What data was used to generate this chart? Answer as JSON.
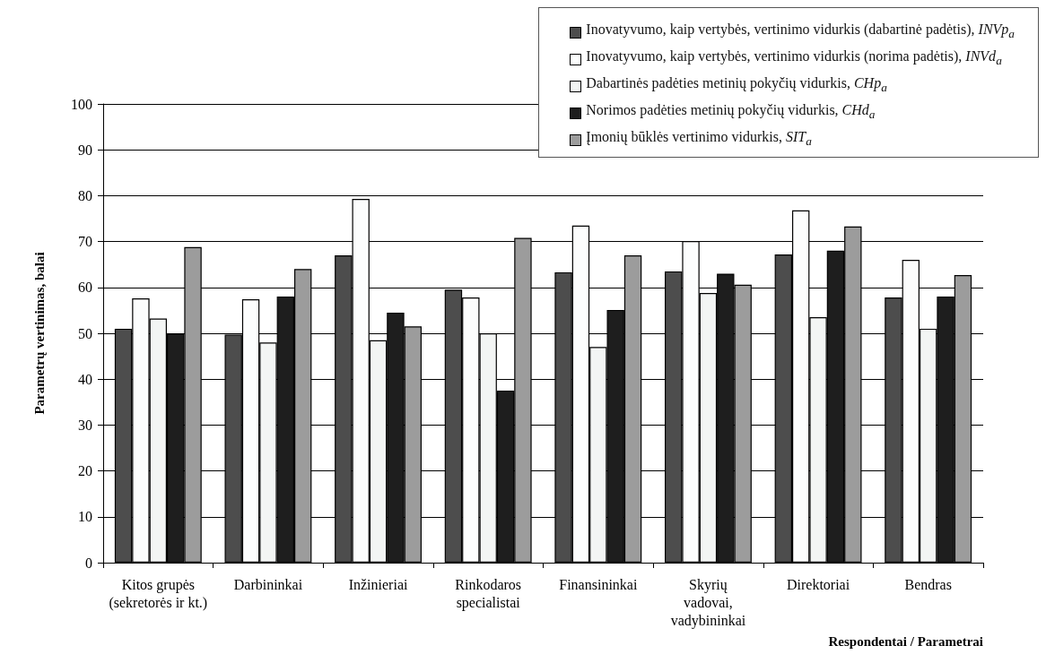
{
  "chart_data": {
    "type": "bar",
    "categories": [
      "Kitos grupės\n(sekretorės ir kt.)",
      "Darbininkai",
      "Inžinieriai",
      "Rinkodaros\nspecialistai",
      "Finansininkai",
      "Skyrių\nvadovai,\nvadybininkai",
      "Direktoriai",
      "Bendras"
    ],
    "series": [
      {
        "name": "Inovatyvumo, kaip vertybės, vertinimo vidurkis (dabartinė padėtis), INVp$_{a}$",
        "color": "#4d4d4d",
        "values": [
          51,
          49.7,
          67,
          59.5,
          63.3,
          63.5,
          67.2,
          57.8
        ]
      },
      {
        "name": "Inovatyvumo, kaip vertybės, vertinimo vidurkis (norima padėtis), INVd$_{a}$",
        "color": "#fcfdfd",
        "values": [
          57.6,
          57.4,
          79.3,
          57.8,
          73.5,
          70.1,
          76.8,
          66
        ]
      },
      {
        "name": "Dabartinės padėties metinių pokyčių vidurkis, CHp$_{a}$",
        "color": "#f3f5f4",
        "values": [
          53.2,
          48,
          48.5,
          50,
          47,
          58.8,
          53.5,
          51
        ]
      },
      {
        "name": "Norimos padėties metinių pokyčių vidurkis, CHd$_{a}$",
        "color": "#1e1e1e",
        "values": [
          50,
          58,
          54.5,
          37.5,
          55.1,
          63,
          68,
          58
        ]
      },
      {
        "name": "Įmonių būklės vertinimo vidurkis, SIT$_{a}$",
        "color": "#9c9c9c",
        "values": [
          68.8,
          64,
          51.5,
          70.8,
          67,
          60.6,
          73.3,
          62.7
        ]
      }
    ],
    "xlabel": "Respondentai / Parametrai",
    "ylabel": "Parametrų vertinimas, balai",
    "ylim": [
      0,
      100
    ],
    "yticks": [
      0,
      10,
      20,
      30,
      40,
      50,
      60,
      70,
      80,
      90,
      100
    ],
    "grid": "y",
    "legend": "top right"
  }
}
